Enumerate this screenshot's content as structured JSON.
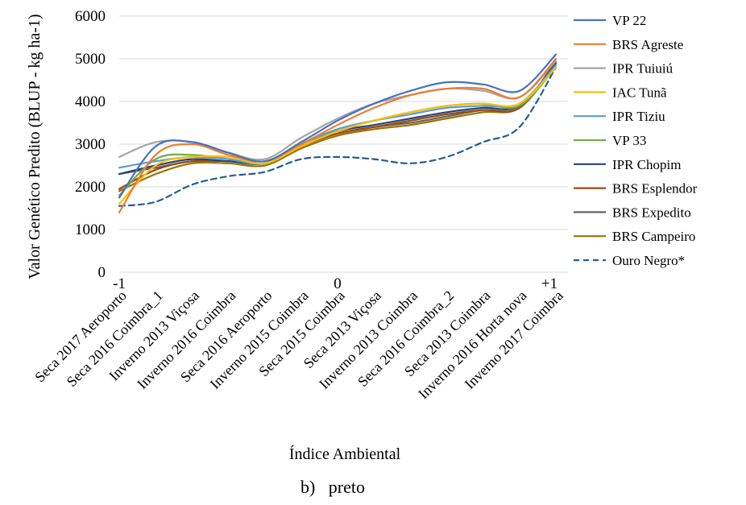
{
  "chart_data": {
    "type": "line",
    "xlabel": "Índice Ambiental",
    "ylabel": "Valor Genético Predito (BLUP - kg ha-1)",
    "ylim": [
      0,
      6000
    ],
    "yticks": [
      0,
      1000,
      2000,
      3000,
      4000,
      5000,
      6000
    ],
    "grid": "horizontal",
    "legend": "right",
    "x_index_labels": [
      "-1",
      "0",
      "+1"
    ],
    "categories": [
      "Seca 2017 Aeroporto",
      "Seca 2016 Coimbra_1",
      "Inverno 2013 Viçosa",
      "Inverno 2016 Coimbra",
      "Seca 2016 Aeroporto",
      "Inverno 2015 Coimbra",
      "Seca 2015 Coimbra",
      "Seca 2013 Viçosa",
      "Inverno 2013 Coimbra",
      "Seca 2016 Coimbra_2",
      "Seca 2013 Coimbra",
      "Inverno 2016 Horta nova",
      "Inverno 2017 Coimbra"
    ],
    "series": [
      {
        "name": "VP 22",
        "color": "#4472C4",
        "dash": "solid",
        "values": [
          1750,
          2950,
          3050,
          2800,
          2600,
          3050,
          3550,
          3950,
          4250,
          4450,
          4400,
          4250,
          5100
        ]
      },
      {
        "name": "BRS Agreste",
        "color": "#ED7D31",
        "dash": "solid",
        "values": [
          1400,
          2750,
          3000,
          2750,
          2600,
          3000,
          3450,
          3850,
          4150,
          4300,
          4300,
          4100,
          5000
        ]
      },
      {
        "name": "IPR Tuiuiú",
        "color": "#A5A5A5",
        "dash": "solid",
        "values": [
          2700,
          3050,
          3050,
          2800,
          2650,
          3150,
          3600,
          3950,
          4150,
          4300,
          4250,
          4100,
          4950
        ]
      },
      {
        "name": "IAC Tunã",
        "color": "#FFC000",
        "dash": "solid",
        "values": [
          1600,
          2500,
          2700,
          2700,
          2550,
          2950,
          3300,
          3550,
          3750,
          3900,
          3950,
          3950,
          4800
        ]
      },
      {
        "name": "IPR Tiziu",
        "color": "#5B9BD5",
        "dash": "solid",
        "values": [
          2450,
          2600,
          2700,
          2650,
          2550,
          3000,
          3350,
          3550,
          3700,
          3850,
          3900,
          3950,
          4850
        ]
      },
      {
        "name": "VP 33",
        "color": "#70AD47",
        "dash": "solid",
        "values": [
          1800,
          2650,
          2750,
          2650,
          2550,
          3000,
          3350,
          3550,
          3750,
          3900,
          3950,
          3900,
          4800
        ]
      },
      {
        "name": "IPR Chopim",
        "color": "#264478",
        "dash": "solid",
        "values": [
          2300,
          2500,
          2650,
          2600,
          2550,
          2950,
          3300,
          3450,
          3600,
          3750,
          3850,
          3900,
          4900
        ]
      },
      {
        "name": "BRS Esplendor",
        "color": "#9E480E",
        "dash": "solid",
        "values": [
          1950,
          2400,
          2600,
          2600,
          2550,
          2950,
          3250,
          3400,
          3550,
          3700,
          3800,
          3850,
          4950
        ]
      },
      {
        "name": "BRS Expedito",
        "color": "#636363",
        "dash": "solid",
        "values": [
          2300,
          2450,
          2600,
          2600,
          2550,
          2950,
          3250,
          3400,
          3500,
          3650,
          3800,
          3850,
          4850
        ]
      },
      {
        "name": "BRS Campeiro",
        "color": "#997300",
        "dash": "solid",
        "values": [
          1900,
          2300,
          2550,
          2550,
          2500,
          2900,
          3200,
          3350,
          3450,
          3600,
          3750,
          3850,
          4900
        ]
      },
      {
        "name": "Ouro Negro*",
        "color": "#255E91",
        "dash": "dashed",
        "values": [
          1550,
          1650,
          2050,
          2250,
          2350,
          2650,
          2700,
          2650,
          2550,
          2700,
          3050,
          3400,
          4800
        ]
      }
    ]
  },
  "caption": "b)   preto"
}
